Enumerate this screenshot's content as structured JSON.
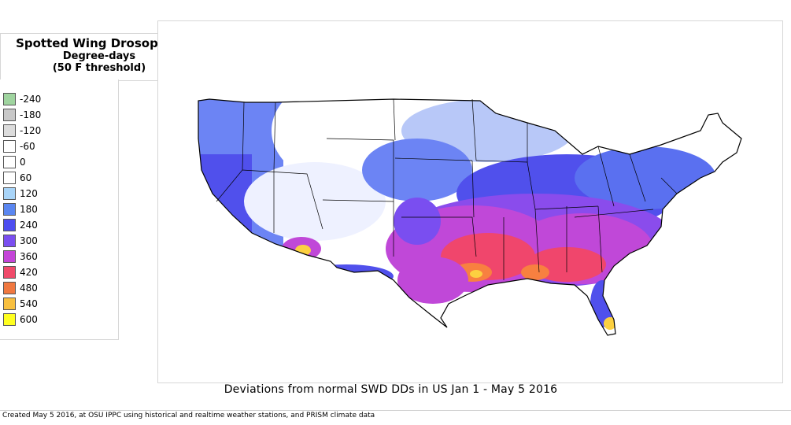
{
  "title": {
    "line1": "Spotted Wing Drosophila",
    "line2": "Degree-days",
    "line3": "(50 F threshold)"
  },
  "legend": [
    {
      "label": "-240",
      "color": "#9fd49f"
    },
    {
      "label": "-180",
      "color": "#c8c8c8"
    },
    {
      "label": "-120",
      "color": "#dcdcdc"
    },
    {
      "label": "-60",
      "color": "#ffffff"
    },
    {
      "label": "0",
      "color": "#ffffff"
    },
    {
      "label": "60",
      "color": "#ffffff"
    },
    {
      "label": "120",
      "color": "#a8d4f8"
    },
    {
      "label": "180",
      "color": "#5a86f0"
    },
    {
      "label": "240",
      "color": "#4d4df0"
    },
    {
      "label": "300",
      "color": "#7a4ef0"
    },
    {
      "label": "360",
      "color": "#c445d8"
    },
    {
      "label": "420",
      "color": "#f04a6a"
    },
    {
      "label": "480",
      "color": "#f07840"
    },
    {
      "label": "540",
      "color": "#f8c040"
    },
    {
      "label": "600",
      "color": "#ffff20"
    }
  ],
  "map": {
    "colors": {
      "background": "#ffffff",
      "light_blue": "#b8c8f8",
      "blue": "#6c84f4",
      "indigo": "#5050ec",
      "violet": "#8a4cec",
      "magenta": "#c048d8",
      "red": "#f0466c",
      "orange": "#f88040",
      "yellow": "#fcd040",
      "border": "#000000"
    }
  },
  "caption": "Deviations from normal SWD DDs in US  Jan 1 - May 5 2016",
  "credit": "Created May 5 2016, at OSU IPPC using  historical and  realtime weather stations, and PRISM climate data"
}
